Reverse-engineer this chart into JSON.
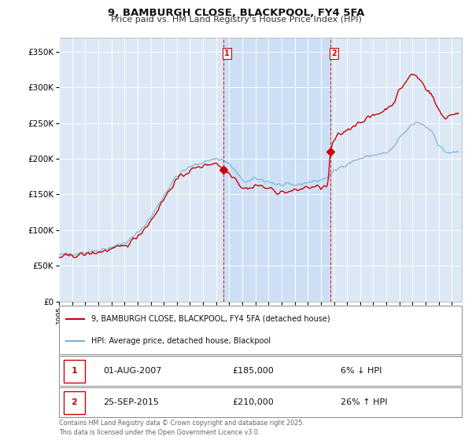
{
  "title": "9, BAMBURGH CLOSE, BLACKPOOL, FY4 5FA",
  "subtitle": "Price paid vs. HM Land Registry's House Price Index (HPI)",
  "footer": "Contains HM Land Registry data © Crown copyright and database right 2025.\nThis data is licensed under the Open Government Licence v3.0.",
  "legend_line1": "9, BAMBURGH CLOSE, BLACKPOOL, FY4 5FA (detached house)",
  "legend_line2": "HPI: Average price, detached house, Blackpool",
  "transaction1_date": "01-AUG-2007",
  "transaction1_price": "£185,000",
  "transaction1_hpi": "6% ↓ HPI",
  "transaction2_date": "25-SEP-2015",
  "transaction2_price": "£210,000",
  "transaction2_hpi": "26% ↑ HPI",
  "sale1_year": 2007.58,
  "sale1_price": 185000,
  "sale2_year": 2015.73,
  "sale2_price": 210000,
  "ylim": [
    0,
    370000
  ],
  "xlim_start": 1995.0,
  "xlim_end": 2025.75,
  "background_color": "#ffffff",
  "plot_bg_color": "#dce8f5",
  "grid_color": "#ffffff",
  "red_color": "#cc0000",
  "blue_color": "#7aafd4",
  "vline_color": "#cc0000",
  "span_color": "#ccdff5"
}
